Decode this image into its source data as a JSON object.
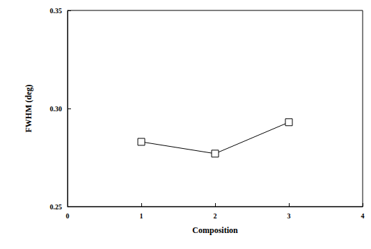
{
  "chart_data": {
    "type": "line",
    "x_label": "Composition",
    "y_label": "FWHM (deg)",
    "x": [
      1,
      2,
      3
    ],
    "values": [
      0.283,
      0.277,
      0.293
    ],
    "color": "#000000",
    "marker": "square",
    "xlim": [
      0,
      4
    ],
    "xticks": [
      0,
      1,
      2,
      3,
      4
    ],
    "ylim": [
      0.25,
      0.35
    ],
    "yticks": [
      0.25,
      {
        "value": 0.3,
        "label": "0.30"
      },
      0.35
    ],
    "grid": false
  }
}
